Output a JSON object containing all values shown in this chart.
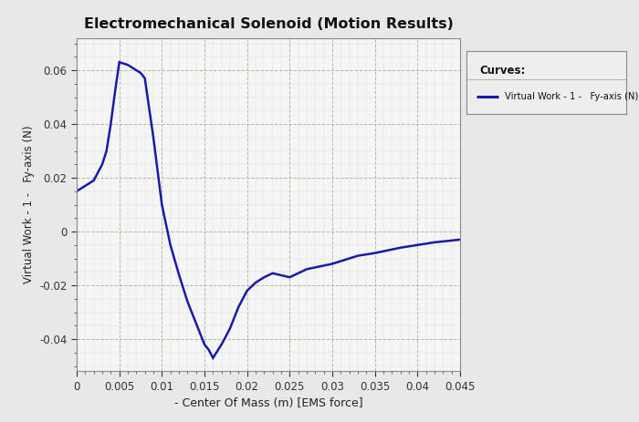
{
  "title": "Electromechanical Solenoid (Motion Results)",
  "xlabel": "- Center Of Mass (m) [EMS force]",
  "ylabel": "Virtual Work - 1 -   Fy-axis (N)",
  "legend_title": "Curves:",
  "legend_label": "Virtual Work - 1 -   Fy-axis (N)",
  "line_color": "#1a1aaa",
  "figure_bg_color": "#e8e8e8",
  "plot_bg_color": "#f5f5f5",
  "grid_color_major": "#b8b8a0",
  "grid_color_minor": "#d0d0c0",
  "xlim": [
    0,
    0.045
  ],
  "ylim": [
    -0.052,
    0.072
  ],
  "xticks": [
    0,
    0.005,
    0.01,
    0.015,
    0.02,
    0.025,
    0.03,
    0.035,
    0.04,
    0.045
  ],
  "yticks": [
    -0.04,
    -0.02,
    0,
    0.02,
    0.04,
    0.06
  ],
  "x": [
    0.0,
    0.001,
    0.002,
    0.003,
    0.0035,
    0.004,
    0.0045,
    0.005,
    0.006,
    0.007,
    0.0075,
    0.008,
    0.009,
    0.01,
    0.011,
    0.012,
    0.013,
    0.014,
    0.015,
    0.0155,
    0.016,
    0.017,
    0.018,
    0.019,
    0.02,
    0.021,
    0.022,
    0.023,
    0.025,
    0.027,
    0.03,
    0.033,
    0.035,
    0.038,
    0.04,
    0.042,
    0.045
  ],
  "y": [
    0.015,
    0.017,
    0.019,
    0.025,
    0.03,
    0.04,
    0.052,
    0.063,
    0.062,
    0.06,
    0.059,
    0.057,
    0.035,
    0.01,
    -0.005,
    -0.016,
    -0.026,
    -0.034,
    -0.042,
    -0.044,
    -0.047,
    -0.042,
    -0.036,
    -0.028,
    -0.022,
    -0.019,
    -0.017,
    -0.0155,
    -0.017,
    -0.014,
    -0.012,
    -0.009,
    -0.008,
    -0.006,
    -0.005,
    -0.004,
    -0.003
  ]
}
